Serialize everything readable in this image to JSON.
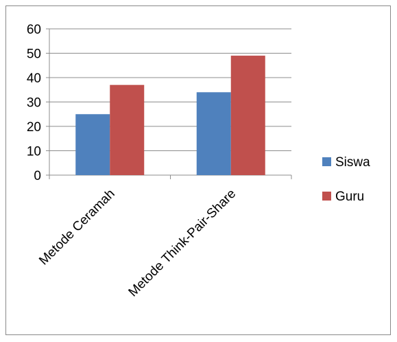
{
  "chart_data": {
    "type": "bar",
    "categories": [
      "Metode Ceramah",
      "Metode Think-Pair-Share"
    ],
    "series": [
      {
        "name": "Siswa",
        "values": [
          25,
          34
        ],
        "color": "#4F81BD"
      },
      {
        "name": "Guru",
        "values": [
          37,
          49
        ],
        "color": "#C0504D"
      }
    ],
    "ylim": [
      0,
      60
    ],
    "yticks": [
      0,
      10,
      20,
      30,
      40,
      50,
      60
    ],
    "grid": true,
    "legend_position": "right"
  }
}
